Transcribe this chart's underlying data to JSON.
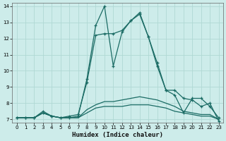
{
  "xlabel": "Humidex (Indice chaleur)",
  "background_color": "#cdecea",
  "grid_color": "#b0d8d4",
  "line_color": "#1a6b64",
  "xlim": [
    -0.5,
    23.5
  ],
  "ylim": [
    6.8,
    14.2
  ],
  "yticks": [
    7,
    8,
    9,
    10,
    11,
    12,
    13,
    14
  ],
  "xticks": [
    0,
    1,
    2,
    3,
    4,
    5,
    6,
    7,
    8,
    9,
    10,
    11,
    12,
    13,
    14,
    15,
    16,
    17,
    18,
    19,
    20,
    21,
    22,
    23
  ],
  "series1_x": [
    0,
    1,
    2,
    3,
    4,
    5,
    6,
    7,
    8,
    9,
    10,
    11,
    12,
    13,
    14,
    15,
    16,
    17,
    18,
    19,
    20,
    21,
    22,
    23
  ],
  "series1_y": [
    7.1,
    7.1,
    7.1,
    7.5,
    7.2,
    7.1,
    7.2,
    7.3,
    9.3,
    12.2,
    12.3,
    12.3,
    12.5,
    13.1,
    13.6,
    12.1,
    10.3,
    8.8,
    8.5,
    7.4,
    8.3,
    8.3,
    7.8,
    7.1
  ],
  "series2_x": [
    0,
    1,
    2,
    3,
    4,
    5,
    6,
    7,
    8,
    9,
    10,
    11,
    12,
    13,
    14,
    15,
    16,
    17,
    18,
    19,
    20,
    21,
    22,
    23
  ],
  "series2_y": [
    7.1,
    7.1,
    7.1,
    7.4,
    7.2,
    7.1,
    7.1,
    7.2,
    9.5,
    12.8,
    14.0,
    10.3,
    12.4,
    13.1,
    13.5,
    12.1,
    10.5,
    8.8,
    8.8,
    8.3,
    8.2,
    7.8,
    8.0,
    6.9
  ],
  "series3_x": [
    0,
    1,
    2,
    3,
    4,
    5,
    6,
    7,
    8,
    9,
    10,
    11,
    12,
    13,
    14,
    15,
    16,
    17,
    18,
    19,
    20,
    21,
    22,
    23
  ],
  "series3_y": [
    7.1,
    7.1,
    7.1,
    7.4,
    7.2,
    7.1,
    7.1,
    7.1,
    7.6,
    7.9,
    8.1,
    8.1,
    8.2,
    8.3,
    8.4,
    8.3,
    8.2,
    8.0,
    7.8,
    7.5,
    7.4,
    7.3,
    7.3,
    7.0
  ],
  "series4_x": [
    0,
    1,
    2,
    3,
    4,
    5,
    6,
    7,
    8,
    9,
    10,
    11,
    12,
    13,
    14,
    15,
    16,
    17,
    18,
    19,
    20,
    21,
    22,
    23
  ],
  "series4_y": [
    7.1,
    7.1,
    7.1,
    7.4,
    7.2,
    7.1,
    7.1,
    7.1,
    7.4,
    7.7,
    7.8,
    7.8,
    7.8,
    7.9,
    7.9,
    7.9,
    7.8,
    7.7,
    7.5,
    7.4,
    7.3,
    7.2,
    7.2,
    7.0
  ]
}
